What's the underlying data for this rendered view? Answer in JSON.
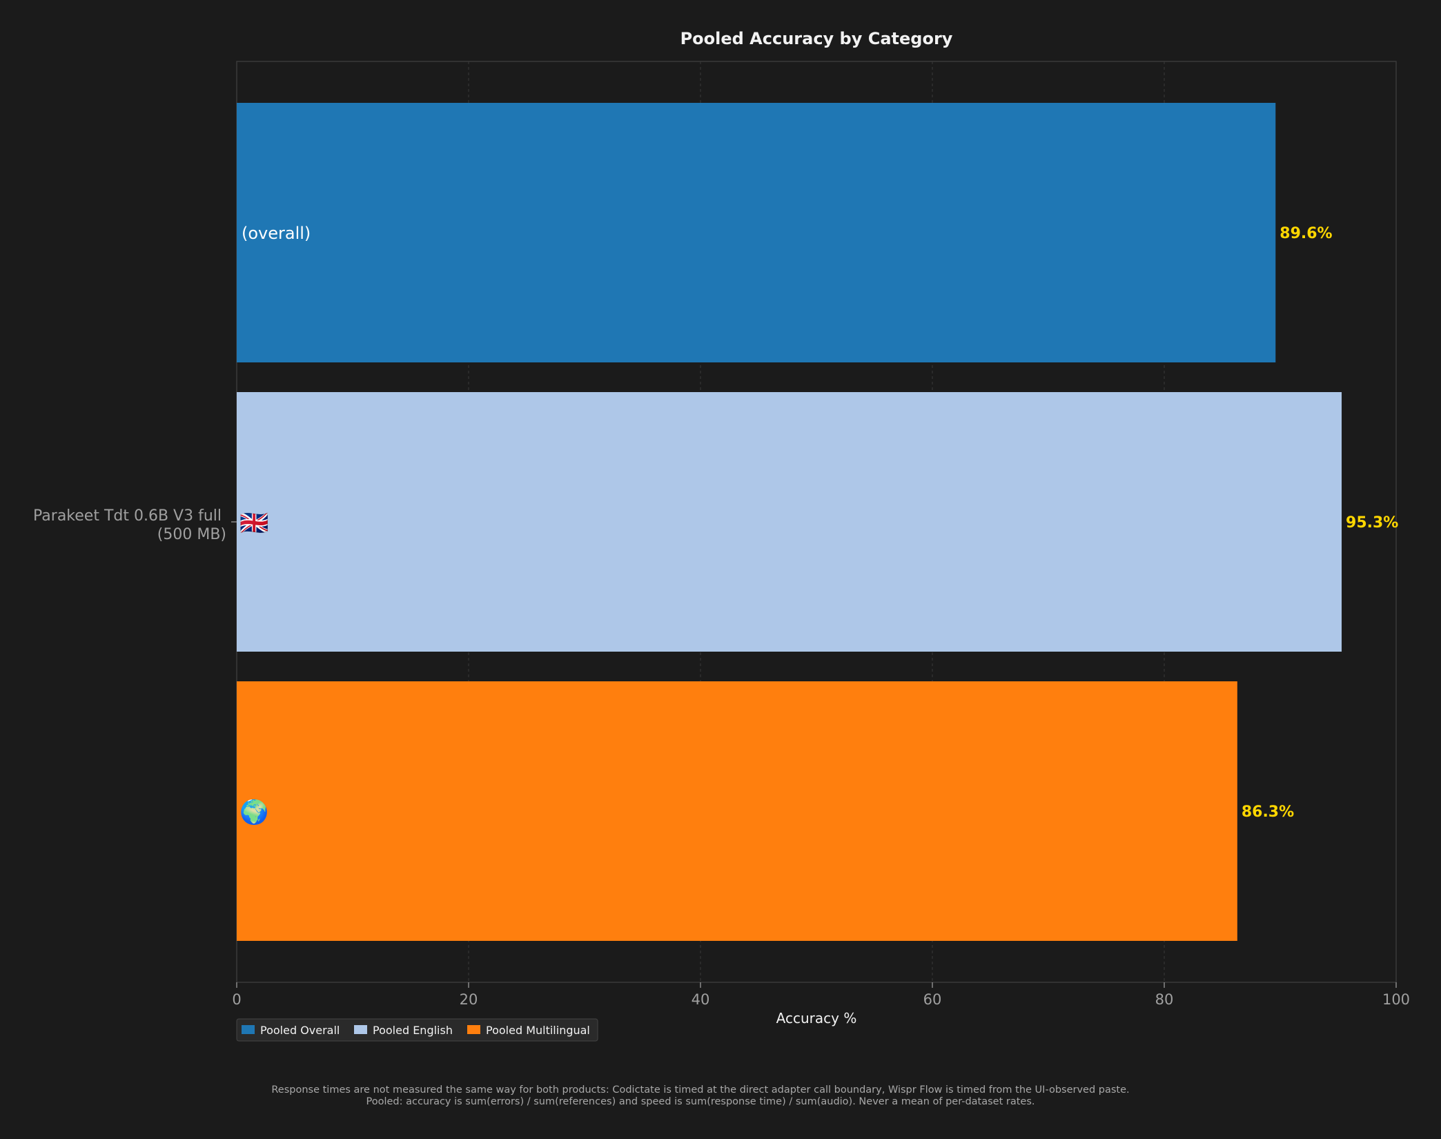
{
  "chart_data": {
    "type": "bar",
    "orientation": "horizontal",
    "title": "Pooled Accuracy by Category",
    "xlabel": "Accuracy %",
    "ylabel": "",
    "xlim": [
      0,
      100
    ],
    "xticks": [
      "0",
      "20",
      "40",
      "60",
      "80",
      "100"
    ],
    "category": "Parakeet Tdt 0.6B V3 full (500 MB)",
    "category_lines": [
      "Parakeet Tdt 0.6B V3 full",
      "(500 MB)"
    ],
    "grid": true,
    "legend_position": "bottom-left",
    "series": [
      {
        "name": "Pooled Overall",
        "value": 89.6,
        "label": "89.6%",
        "inbar_text": "(overall)",
        "inbar_icon": "",
        "color": "#1f77b4"
      },
      {
        "name": "Pooled English",
        "value": 95.3,
        "label": "95.3%",
        "inbar_text": "",
        "inbar_icon": "🇬🇧",
        "color": "#aec7e8"
      },
      {
        "name": "Pooled Multilingual",
        "value": 86.3,
        "label": "86.3%",
        "inbar_text": "",
        "inbar_icon": "🌍",
        "color": "#ff7f0e"
      }
    ],
    "value_label_color": "#ffd700"
  },
  "footnote": {
    "line1": "Response times are not measured the same way for both products: Codictate is timed at the direct adapter call boundary, Wispr Flow is timed from the UI-observed paste.",
    "line2": "Pooled: accuracy is sum(errors) / sum(references) and speed is sum(response time) / sum(audio). Never a mean of per-dataset rates."
  }
}
